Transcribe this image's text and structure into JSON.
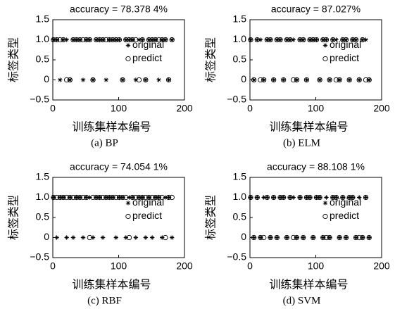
{
  "chart_data": [
    {
      "type": "scatter",
      "title": "accuracy = 78.378 4%",
      "caption": "(a) BP",
      "xlabel": "训练集样本编号",
      "ylabel": "标签类型",
      "xlim": [
        0,
        200
      ],
      "xticks": [
        0,
        100,
        200
      ],
      "ylim": [
        -0.5,
        1.5
      ],
      "yticks": [
        {
          "value": -0.5,
          "label": "−0.5"
        },
        0,
        0.5,
        {
          "value": 1,
          "label": "1.0"
        },
        1.5
      ],
      "legend": "right",
      "x": [
        1,
        6,
        11,
        16,
        21,
        26,
        31,
        36,
        41,
        46,
        51,
        56,
        61,
        66,
        71,
        76,
        81,
        86,
        91,
        96,
        101,
        106,
        111,
        116,
        121,
        126,
        131,
        136,
        141,
        146,
        151,
        156,
        161,
        166,
        171,
        176,
        181
      ],
      "series": [
        {
          "name": "original",
          "marker": "*",
          "color": "#000000",
          "values": [
            1,
            1,
            0,
            1,
            1,
            0,
            1,
            1,
            1,
            0,
            1,
            1,
            0,
            1,
            1,
            1,
            0,
            1,
            1,
            1,
            1,
            0,
            1,
            1,
            1,
            0,
            1,
            1,
            0,
            1,
            1,
            1,
            0,
            1,
            1,
            0,
            1
          ]
        },
        {
          "name": "predict",
          "marker": "o",
          "color": "#000000",
          "values": [
            1,
            1,
            1,
            1,
            0,
            0,
            1,
            1,
            1,
            1,
            1,
            1,
            0,
            1,
            1,
            1,
            1,
            1,
            1,
            1,
            1,
            0,
            1,
            1,
            1,
            1,
            0,
            1,
            0,
            1,
            1,
            1,
            1,
            1,
            1,
            0,
            1
          ]
        }
      ]
    },
    {
      "type": "scatter",
      "title": "accuracy = 87.027%",
      "caption": "(b) ELM",
      "xlabel": "训练集样本编号",
      "ylabel": "标签类型",
      "xlim": [
        0,
        200
      ],
      "xticks": [
        0,
        100,
        200
      ],
      "ylim": [
        -0.5,
        1.5
      ],
      "yticks": [
        {
          "value": -0.5,
          "label": "−0.5"
        },
        0,
        0.5,
        {
          "value": 1,
          "label": "1.0"
        },
        1.5
      ],
      "legend": "right",
      "x": [
        1,
        6,
        11,
        16,
        21,
        26,
        31,
        36,
        41,
        46,
        51,
        56,
        61,
        66,
        71,
        76,
        81,
        86,
        91,
        96,
        101,
        106,
        111,
        116,
        121,
        126,
        131,
        136,
        141,
        146,
        151,
        156,
        161,
        166,
        171,
        176,
        181
      ],
      "series": [
        {
          "name": "original",
          "marker": "*",
          "color": "#000000",
          "values": [
            1,
            0,
            1,
            1,
            0,
            1,
            1,
            0,
            1,
            1,
            0,
            1,
            1,
            1,
            0,
            1,
            1,
            0,
            1,
            1,
            1,
            0,
            1,
            1,
            0,
            1,
            1,
            0,
            1,
            1,
            0,
            1,
            1,
            0,
            1,
            1,
            0
          ]
        },
        {
          "name": "predict",
          "marker": "o",
          "color": "#000000",
          "values": [
            1,
            0,
            1,
            0,
            0,
            1,
            1,
            0,
            1,
            1,
            0,
            1,
            1,
            0,
            0,
            1,
            1,
            0,
            1,
            1,
            1,
            0,
            1,
            1,
            0,
            1,
            0,
            0,
            1,
            1,
            0,
            1,
            1,
            0,
            1,
            0,
            0
          ]
        }
      ]
    },
    {
      "type": "scatter",
      "title": "accuracy = 74.054 1%",
      "caption": "(c) RBF",
      "xlabel": "训练集样本编号",
      "ylabel": "标签类型",
      "xlim": [
        0,
        200
      ],
      "xticks": [
        0,
        100,
        200
      ],
      "ylim": [
        -0.5,
        1.5
      ],
      "yticks": [
        {
          "value": -0.5,
          "label": "−0.5"
        },
        0,
        0.5,
        {
          "value": 1,
          "label": "1.0"
        },
        1.5
      ],
      "legend": "right",
      "x": [
        1,
        6,
        11,
        16,
        21,
        26,
        31,
        36,
        41,
        46,
        51,
        56,
        61,
        66,
        71,
        76,
        81,
        86,
        91,
        96,
        101,
        106,
        111,
        116,
        121,
        126,
        131,
        136,
        141,
        146,
        151,
        156,
        161,
        166,
        171,
        176,
        181
      ],
      "series": [
        {
          "name": "original",
          "marker": "*",
          "color": "#000000",
          "values": [
            1,
            0,
            1,
            1,
            0,
            1,
            0,
            1,
            1,
            0,
            1,
            1,
            0,
            1,
            1,
            0,
            1,
            1,
            1,
            0,
            1,
            1,
            0,
            1,
            1,
            0,
            1,
            1,
            0,
            1,
            0,
            1,
            1,
            0,
            1,
            1,
            0
          ]
        },
        {
          "name": "predict",
          "marker": "o",
          "color": "#000000",
          "values": [
            1,
            1,
            1,
            1,
            1,
            1,
            1,
            1,
            1,
            1,
            1,
            0,
            1,
            1,
            1,
            1,
            1,
            1,
            1,
            1,
            1,
            1,
            1,
            0,
            1,
            1,
            1,
            1,
            1,
            1,
            1,
            1,
            1,
            1,
            0,
            1,
            1
          ]
        }
      ]
    },
    {
      "type": "scatter",
      "title": "accuracy = 88.108 1%",
      "caption": "(d) SVM",
      "xlabel": "训练集样本编号",
      "ylabel": "标签类型",
      "xlim": [
        0,
        200
      ],
      "xticks": [
        0,
        100,
        200
      ],
      "ylim": [
        -0.5,
        1.5
      ],
      "yticks": [
        {
          "value": -0.5,
          "label": "−0.5"
        },
        0,
        0.5,
        {
          "value": 1,
          "label": "1.0"
        },
        1.5
      ],
      "legend": "right",
      "x": [
        1,
        6,
        11,
        16,
        21,
        26,
        31,
        36,
        41,
        46,
        51,
        56,
        61,
        66,
        71,
        76,
        81,
        86,
        91,
        96,
        101,
        106,
        111,
        116,
        121,
        126,
        131,
        136,
        141,
        146,
        151,
        156,
        161,
        166,
        171,
        176,
        181
      ],
      "series": [
        {
          "name": "original",
          "marker": "*",
          "color": "#000000",
          "values": [
            1,
            0,
            1,
            0,
            1,
            1,
            0,
            1,
            0,
            1,
            1,
            0,
            1,
            1,
            0,
            1,
            0,
            1,
            1,
            0,
            1,
            1,
            0,
            1,
            0,
            1,
            1,
            0,
            1,
            0,
            1,
            1,
            0,
            1,
            0,
            1,
            0
          ]
        },
        {
          "name": "predict",
          "marker": "o",
          "color": "#000000",
          "values": [
            1,
            0,
            1,
            0,
            0,
            1,
            0,
            1,
            0,
            1,
            1,
            0,
            1,
            0,
            0,
            1,
            0,
            1,
            1,
            0,
            1,
            1,
            0,
            0,
            0,
            1,
            1,
            0,
            1,
            0,
            1,
            1,
            0,
            0,
            0,
            1,
            0
          ]
        }
      ]
    }
  ]
}
